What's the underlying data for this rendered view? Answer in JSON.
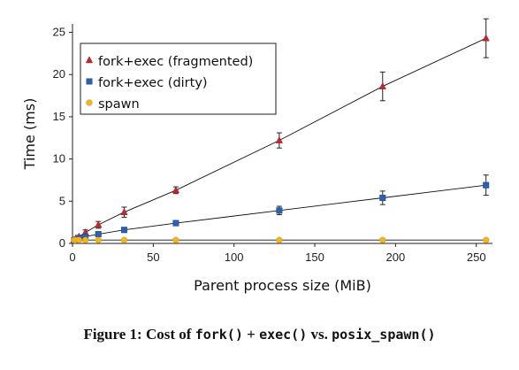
{
  "chart_data": {
    "type": "scatter",
    "xlabel": "Parent process size (MiB)",
    "ylabel": "Time (ms)",
    "xlim": [
      0,
      260
    ],
    "ylim": [
      0,
      26
    ],
    "xticks": [
      0,
      50,
      100,
      150,
      200,
      250
    ],
    "yticks": [
      0,
      5,
      10,
      15,
      20,
      25
    ],
    "legend_position": "top-left",
    "grid": false,
    "series": [
      {
        "name": "fork+exec (fragmented)",
        "marker": "triangle",
        "color": "#c0282d",
        "x": [
          1,
          2,
          4,
          8,
          16,
          32,
          64,
          128,
          192,
          256
        ],
        "y": [
          0.4,
          0.6,
          0.8,
          1.3,
          2.2,
          3.7,
          6.3,
          12.2,
          18.6,
          24.3
        ],
        "err": [
          0.1,
          0.1,
          0.15,
          0.3,
          0.4,
          0.6,
          0.4,
          0.9,
          1.7,
          2.3
        ]
      },
      {
        "name": "fork+exec (dirty)",
        "marker": "square",
        "color": "#2b5fb0",
        "x": [
          1,
          2,
          4,
          8,
          16,
          32,
          64,
          128,
          192,
          256
        ],
        "y": [
          0.35,
          0.45,
          0.6,
          0.8,
          1.1,
          1.6,
          2.4,
          3.9,
          5.4,
          6.9
        ],
        "err": [
          0.05,
          0.05,
          0.1,
          0.15,
          0.2,
          0.2,
          0.3,
          0.5,
          0.8,
          1.2
        ]
      },
      {
        "name": "spawn",
        "marker": "circle",
        "color": "#f2b51f",
        "x": [
          1,
          2,
          4,
          8,
          16,
          32,
          64,
          128,
          192,
          256
        ],
        "y": [
          0.4,
          0.4,
          0.4,
          0.4,
          0.4,
          0.4,
          0.4,
          0.4,
          0.4,
          0.4
        ],
        "err": [
          0.05,
          0.05,
          0.05,
          0.05,
          0.05,
          0.1,
          0.1,
          0.1,
          0.15,
          0.15
        ]
      }
    ]
  },
  "caption": {
    "prefix": "Figure 1: Cost of ",
    "code1": "fork()",
    "plus": " + ",
    "code2": "exec()",
    "vs": " vs. ",
    "code3": "posix_spawn()"
  }
}
